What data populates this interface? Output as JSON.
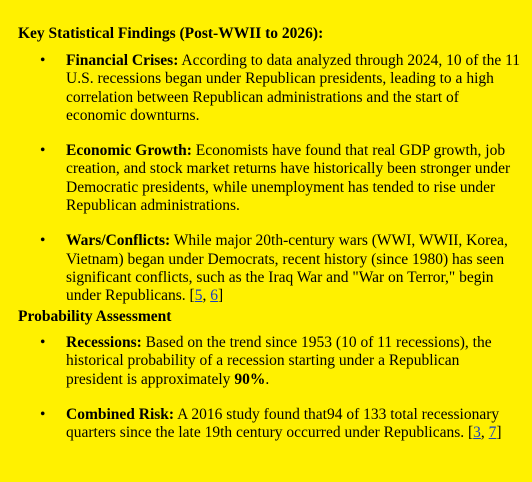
{
  "section1": {
    "heading": "Key Statistical Findings (Post-WWII to 2026):",
    "items": [
      {
        "term": "Financial Crises:",
        "text": " According to data analyzed through 2024, 10 of the 11 U.S. recessions began under Republican presidents, leading to a high correlation between Republican administrations and the start of economic downturns."
      },
      {
        "term": "Economic Growth:",
        "text": " Economists have found that real GDP growth, job creation, and stock market returns have historically been stronger under Democratic presidents, while unemployment has tended to rise under Republican administrations."
      },
      {
        "term": "Wars/Conflicts:",
        "text": " While major 20th-century wars (WWI, WWII, Korea, Vietnam) began under Democrats, recent history (since 1980) has seen significant conflicts, such as the Iraq War and \"War on Terror,\" begin under Republicans. [",
        "ref1": "5",
        "sep": ", ",
        "ref2": "6",
        "close": "]"
      }
    ]
  },
  "section2": {
    "heading": "Probability Assessment",
    "items": [
      {
        "term": "Recessions:",
        "text": " Based on the trend since 1953 (10 of 11 recessions), the historical probability of a recession starting under a Republican president is approximately ",
        "strong": "90%",
        "after": "."
      },
      {
        "term": "Combined Risk:",
        "text": " A 2016 study found that94 of 133 total recessionary quarters since the late 19th century occurred under Republicans. [",
        "ref1": "3",
        "sep": ", ",
        "ref2": "7",
        "close": "]"
      }
    ]
  },
  "bullet": "•"
}
